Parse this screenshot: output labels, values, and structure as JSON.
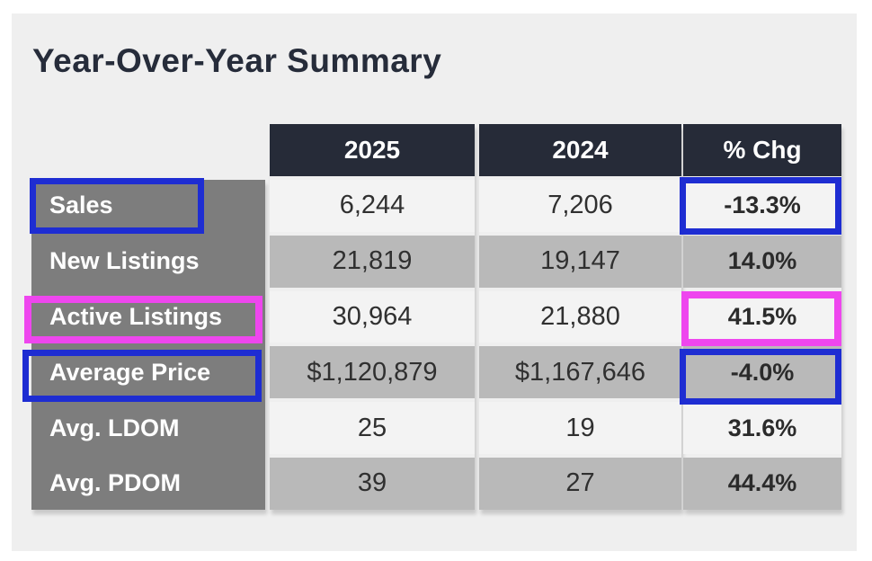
{
  "title": "Year-Over-Year Summary",
  "chart_data": {
    "type": "table",
    "title": "Year-Over-Year Summary",
    "columns": [
      "2025",
      "2024",
      "% Chg"
    ],
    "rows": [
      {
        "label": "Sales",
        "y2025": "6,244",
        "y2024": "7,206",
        "pct": "-13.3%"
      },
      {
        "label": "New Listings",
        "y2025": "21,819",
        "y2024": "19,147",
        "pct": "14.0%"
      },
      {
        "label": "Active Listings",
        "y2025": "30,964",
        "y2024": "21,880",
        "pct": "41.5%"
      },
      {
        "label": "Average Price",
        "y2025": "$1,120,879",
        "y2024": "$1,167,646",
        "pct": "-4.0%"
      },
      {
        "label": "Avg. LDOM",
        "y2025": "25",
        "y2024": "19",
        "pct": "31.6%"
      },
      {
        "label": "Avg. PDOM",
        "y2025": "39",
        "y2024": "27",
        "pct": "44.4%"
      }
    ]
  },
  "annotations": [
    {
      "target": "Sales row label",
      "color": "#1e2dd2"
    },
    {
      "target": "Sales % change cell",
      "color": "#1e2dd2"
    },
    {
      "target": "Active Listings row label",
      "color": "#ee46ee"
    },
    {
      "target": "Active Listings % change cell",
      "color": "#ee46ee"
    },
    {
      "target": "Average Price row label",
      "color": "#1e2dd2"
    },
    {
      "target": "Average Price % change cell",
      "color": "#1e2dd2"
    }
  ],
  "colors": {
    "panel_bg": "#efefef",
    "header_bg": "#262b38",
    "label_column_bg": "#7d7d7d",
    "row_light": "#f3f3f3",
    "row_dark": "#b9b9b9",
    "accent_blue": "#1e2dd2",
    "accent_magenta": "#ee46ee",
    "title_text": "#262c3a"
  }
}
